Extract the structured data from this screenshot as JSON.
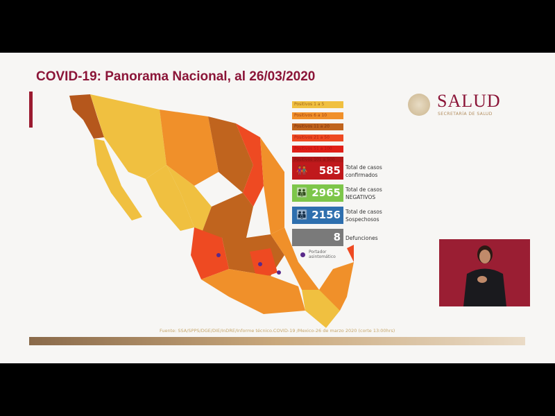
{
  "title": "COVID-19: Panorama Nacional, al 26/03/2020",
  "logo": {
    "name": "SALUD",
    "subtitle": "SECRETARÍA DE SALUD"
  },
  "legend": [
    {
      "label": "Positivos 1 a 5",
      "color": "#f0c040"
    },
    {
      "label": "Positivos 6 a 10",
      "color": "#f0902a"
    },
    {
      "label": "Positivos 11 a 20",
      "color": "#c0641e"
    },
    {
      "label": "Positivos 21 a 50",
      "color": "#ee4a22"
    },
    {
      "label": "Positivos 51 a 100",
      "color": "#e02018"
    },
    {
      "label": "Positivos 101 a 500",
      "color": "#b01818"
    }
  ],
  "stats": [
    {
      "value": "585",
      "label1": "Total de casos",
      "label2": "confirmados",
      "color": "#c0191c",
      "icon": "people-icon"
    },
    {
      "value": "2965",
      "label1": "Total de casos",
      "label2": "NEGATIVOS",
      "color": "#7dc64a",
      "icon": "people-icon"
    },
    {
      "value": "2156",
      "label1": "Total de casos",
      "label2": "Sospechosos",
      "color": "#2e6fae",
      "icon": "people-icon"
    },
    {
      "value": "8",
      "label1": "Defunciones",
      "label2": "",
      "color": "#7a7a7a",
      "icon": ""
    }
  ],
  "asymptomatic": {
    "line1": "Portador",
    "line2": "asintomático",
    "color": "#5a2a8a"
  },
  "source": "Fuente: SSA/SPPS/DGE/DIE/InDRE/Informe técnico.COVID-19 /Mexico-26 de marzo 2020 (corte 13:00hrs)"
}
